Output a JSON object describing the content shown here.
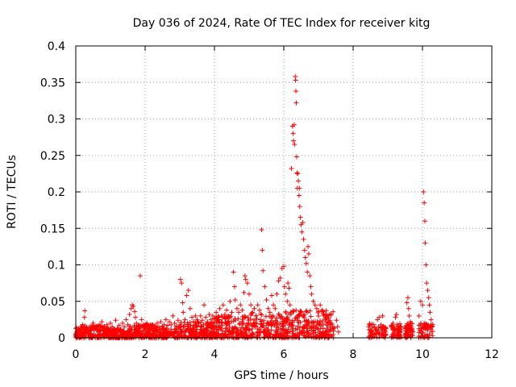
{
  "chart_data": {
    "type": "scatter",
    "title": "Day 036 of 2024, Rate Of TEC Index for receiver kitg",
    "xlabel": "GPS time / hours",
    "ylabel": "ROTI / TECUs",
    "xlim": [
      0,
      12
    ],
    "ylim": [
      0,
      0.4
    ],
    "x_ticks": [
      0,
      2,
      4,
      6,
      8,
      10,
      12
    ],
    "x_tick_labels": [
      "0",
      "2",
      "4",
      "6",
      "8",
      "10",
      "12"
    ],
    "y_ticks": [
      0,
      0.05,
      0.1,
      0.15,
      0.2,
      0.25,
      0.3,
      0.35,
      0.4
    ],
    "y_tick_labels": [
      "0",
      "0.05",
      "0.1",
      "0.15",
      "0.2",
      "0.25",
      "0.3",
      "0.35",
      "0.4"
    ],
    "grid": true,
    "marker": "+",
    "marker_color": "#ff0000",
    "series": [
      {
        "name": "ROTI",
        "points": [
          [
            0.02,
            0.008
          ],
          [
            0.08,
            0.012
          ],
          [
            0.15,
            0.01
          ],
          [
            0.2,
            0.018
          ],
          [
            0.25,
            0.028
          ],
          [
            0.26,
            0.037
          ],
          [
            0.3,
            0.012
          ],
          [
            0.35,
            0.009
          ],
          [
            0.4,
            0.015
          ],
          [
            0.45,
            0.011
          ],
          [
            0.5,
            0.02
          ],
          [
            0.55,
            0.013
          ],
          [
            0.6,
            0.01
          ],
          [
            0.65,
            0.016
          ],
          [
            0.7,
            0.012
          ],
          [
            0.75,
            0.022
          ],
          [
            0.8,
            0.014
          ],
          [
            0.85,
            0.01
          ],
          [
            0.9,
            0.018
          ],
          [
            0.95,
            0.012
          ],
          [
            1.0,
            0.02
          ],
          [
            1.05,
            0.015
          ],
          [
            1.1,
            0.011
          ],
          [
            1.15,
            0.024
          ],
          [
            1.2,
            0.013
          ],
          [
            1.25,
            0.017
          ],
          [
            1.3,
            0.012
          ],
          [
            1.35,
            0.02
          ],
          [
            1.4,
            0.015
          ],
          [
            1.45,
            0.025
          ],
          [
            1.5,
            0.018
          ],
          [
            1.55,
            0.032
          ],
          [
            1.6,
            0.04
          ],
          [
            1.63,
            0.045
          ],
          [
            1.66,
            0.043
          ],
          [
            1.7,
            0.036
          ],
          [
            1.72,
            0.028
          ],
          [
            1.75,
            0.02
          ],
          [
            1.8,
            0.016
          ],
          [
            1.86,
            0.085
          ],
          [
            1.9,
            0.025
          ],
          [
            1.95,
            0.018
          ],
          [
            2.0,
            0.014
          ],
          [
            2.05,
            0.02
          ],
          [
            2.1,
            0.015
          ],
          [
            2.15,
            0.012
          ],
          [
            2.2,
            0.018
          ],
          [
            2.25,
            0.013
          ],
          [
            2.3,
            0.016
          ],
          [
            2.35,
            0.02
          ],
          [
            2.4,
            0.015
          ],
          [
            2.45,
            0.022
          ],
          [
            2.5,
            0.016
          ],
          [
            2.55,
            0.018
          ],
          [
            2.6,
            0.025
          ],
          [
            2.65,
            0.017
          ],
          [
            2.7,
            0.022
          ],
          [
            2.75,
            0.018
          ],
          [
            2.8,
            0.03
          ],
          [
            2.85,
            0.02
          ],
          [
            2.9,
            0.016
          ],
          [
            2.95,
            0.024
          ],
          [
            3.0,
            0.018
          ],
          [
            3.02,
            0.08
          ],
          [
            3.05,
            0.075
          ],
          [
            3.08,
            0.048
          ],
          [
            3.1,
            0.035
          ],
          [
            3.15,
            0.025
          ],
          [
            3.2,
            0.058
          ],
          [
            3.25,
            0.065
          ],
          [
            3.3,
            0.04
          ],
          [
            3.35,
            0.028
          ],
          [
            3.4,
            0.022
          ],
          [
            3.45,
            0.03
          ],
          [
            3.5,
            0.025
          ],
          [
            3.55,
            0.02
          ],
          [
            3.6,
            0.03
          ],
          [
            3.65,
            0.024
          ],
          [
            3.7,
            0.045
          ],
          [
            3.75,
            0.028
          ],
          [
            3.8,
            0.022
          ],
          [
            3.85,
            0.032
          ],
          [
            3.9,
            0.025
          ],
          [
            3.95,
            0.03
          ],
          [
            4.0,
            0.026
          ],
          [
            4.05,
            0.035
          ],
          [
            4.1,
            0.028
          ],
          [
            4.15,
            0.04
          ],
          [
            4.2,
            0.03
          ],
          [
            4.25,
            0.045
          ],
          [
            4.3,
            0.032
          ],
          [
            4.35,
            0.038
          ],
          [
            4.4,
            0.03
          ],
          [
            4.45,
            0.05
          ],
          [
            4.5,
            0.035
          ],
          [
            4.55,
            0.09
          ],
          [
            4.58,
            0.07
          ],
          [
            4.6,
            0.052
          ],
          [
            4.65,
            0.04
          ],
          [
            4.7,
            0.035
          ],
          [
            4.75,
            0.045
          ],
          [
            4.8,
            0.038
          ],
          [
            4.85,
            0.062
          ],
          [
            4.88,
            0.085
          ],
          [
            4.9,
            0.08
          ],
          [
            4.95,
            0.075
          ],
          [
            5.0,
            0.06
          ],
          [
            5.05,
            0.045
          ],
          [
            5.1,
            0.035
          ],
          [
            5.15,
            0.04
          ],
          [
            5.2,
            0.03
          ],
          [
            5.25,
            0.045
          ],
          [
            5.3,
            0.038
          ],
          [
            5.36,
            0.148
          ],
          [
            5.38,
            0.12
          ],
          [
            5.4,
            0.092
          ],
          [
            5.45,
            0.07
          ],
          [
            5.5,
            0.052
          ],
          [
            5.55,
            0.04
          ],
          [
            5.6,
            0.035
          ],
          [
            5.65,
            0.058
          ],
          [
            5.7,
            0.045
          ],
          [
            5.75,
            0.04
          ],
          [
            5.8,
            0.06
          ],
          [
            5.85,
            0.078
          ],
          [
            5.9,
            0.082
          ],
          [
            5.95,
            0.095
          ],
          [
            6.0,
            0.098
          ],
          [
            6.02,
            0.07
          ],
          [
            6.05,
            0.06
          ],
          [
            6.1,
            0.05
          ],
          [
            6.12,
            0.075
          ],
          [
            6.15,
            0.068
          ],
          [
            6.18,
            0.045
          ],
          [
            6.2,
            0.035
          ],
          [
            6.22,
            0.232
          ],
          [
            6.25,
            0.29
          ],
          [
            6.27,
            0.28
          ],
          [
            6.28,
            0.27
          ],
          [
            6.3,
            0.292
          ],
          [
            6.31,
            0.265
          ],
          [
            6.33,
            0.358
          ],
          [
            6.34,
            0.353
          ],
          [
            6.35,
            0.338
          ],
          [
            6.36,
            0.322
          ],
          [
            6.37,
            0.248
          ],
          [
            6.38,
            0.226
          ],
          [
            6.39,
            0.205
          ],
          [
            6.4,
            0.225
          ],
          [
            6.42,
            0.215
          ],
          [
            6.44,
            0.195
          ],
          [
            6.45,
            0.205
          ],
          [
            6.46,
            0.18
          ],
          [
            6.48,
            0.165
          ],
          [
            6.5,
            0.155
          ],
          [
            6.52,
            0.145
          ],
          [
            6.55,
            0.158
          ],
          [
            6.57,
            0.135
          ],
          [
            6.6,
            0.12
          ],
          [
            6.62,
            0.11
          ],
          [
            6.65,
            0.102
          ],
          [
            6.68,
            0.09
          ],
          [
            6.7,
            0.125
          ],
          [
            6.72,
            0.115
          ],
          [
            6.75,
            0.085
          ],
          [
            6.78,
            0.07
          ],
          [
            6.8,
            0.06
          ],
          [
            6.85,
            0.05
          ],
          [
            6.9,
            0.045
          ],
          [
            6.95,
            0.04
          ],
          [
            7.0,
            0.036
          ],
          [
            7.05,
            0.045
          ],
          [
            7.1,
            0.038
          ],
          [
            7.15,
            0.03
          ],
          [
            7.2,
            0.025
          ],
          [
            7.25,
            0.03
          ],
          [
            7.3,
            0.022
          ],
          [
            7.35,
            0.018
          ],
          [
            7.4,
            0.015
          ],
          [
            7.42,
            0.012
          ],
          [
            7.52,
            0.024
          ],
          [
            7.55,
            0.015
          ],
          [
            7.58,
            0.008
          ],
          [
            8.45,
            0.015
          ],
          [
            8.5,
            0.01
          ],
          [
            8.55,
            0.008
          ],
          [
            8.6,
            0.018
          ],
          [
            8.65,
            0.012
          ],
          [
            8.7,
            0.025
          ],
          [
            8.75,
            0.028
          ],
          [
            8.8,
            0.018
          ],
          [
            8.85,
            0.03
          ],
          [
            8.9,
            0.012
          ],
          [
            9.15,
            0.02
          ],
          [
            9.2,
            0.012
          ],
          [
            9.22,
            0.028
          ],
          [
            9.25,
            0.032
          ],
          [
            9.3,
            0.016
          ],
          [
            9.35,
            0.01
          ],
          [
            9.55,
            0.048
          ],
          [
            9.58,
            0.055
          ],
          [
            9.6,
            0.04
          ],
          [
            9.62,
            0.03
          ],
          [
            9.65,
            0.022
          ],
          [
            9.7,
            0.012
          ],
          [
            9.9,
            0.03
          ],
          [
            9.95,
            0.05
          ],
          [
            10.0,
            0.045
          ],
          [
            10.03,
            0.2
          ],
          [
            10.05,
            0.185
          ],
          [
            10.07,
            0.16
          ],
          [
            10.08,
            0.13
          ],
          [
            10.1,
            0.1
          ],
          [
            10.12,
            0.075
          ],
          [
            10.15,
            0.065
          ],
          [
            10.18,
            0.055
          ],
          [
            10.2,
            0.045
          ],
          [
            10.22,
            0.035
          ],
          [
            10.25,
            0.025
          ],
          [
            10.28,
            0.015
          ]
        ]
      }
    ]
  }
}
